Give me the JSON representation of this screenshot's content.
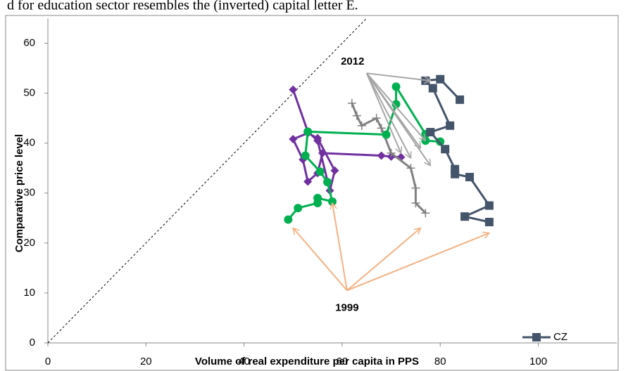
{
  "caption": "d for education sector resembles the (inverted) capital letter E.",
  "chart_data": {
    "type": "line",
    "x_label": "Volume of real expenditure per capita in PPS",
    "y_label": "Comparative price level",
    "xlim": [
      0,
      116
    ],
    "xticks": [
      0,
      20,
      40,
      60,
      80,
      100
    ],
    "ylim": [
      0,
      65
    ],
    "yticks": [
      0,
      10,
      20,
      30,
      40,
      50,
      60
    ],
    "legend": "bottom-right",
    "diagonal": true,
    "series": [
      {
        "color": "#7030a0",
        "marker": "diamond",
        "x": [
          50,
          53,
          55,
          57.5,
          58.5,
          55,
          53,
          50,
          52,
          53,
          55,
          56,
          68,
          70,
          72
        ],
        "values": [
          50.7,
          42.3,
          40.5,
          30.5,
          34.5,
          41,
          42,
          40.8,
          36.7,
          32.3,
          34,
          38,
          37.5,
          37.3,
          37.2
        ]
      },
      {
        "color": "#808080",
        "marker": "plus",
        "x": [
          62,
          63,
          64,
          67,
          68,
          70,
          74,
          75,
          75,
          77
        ],
        "values": [
          48,
          45.5,
          43.5,
          45,
          43,
          38,
          35,
          31,
          28,
          26
        ]
      },
      {
        "color": "#00b050",
        "marker": "circle",
        "x": [
          49,
          51,
          55,
          55,
          58,
          57,
          55.5,
          52.5,
          53,
          69,
          71,
          71,
          77,
          77,
          80
        ],
        "values": [
          24.7,
          27,
          28,
          29,
          28.3,
          32.2,
          34.3,
          37.5,
          42.3,
          41.7,
          47.8,
          51.3,
          41.8,
          40.5,
          40.3
        ]
      },
      {
        "name": "CZ",
        "color": "#44546a",
        "marker": "square",
        "x": [
          90,
          85,
          90,
          86,
          83,
          83,
          81,
          78,
          82,
          78.5,
          77,
          80,
          84
        ],
        "values": [
          24.2,
          25.3,
          27.5,
          33.2,
          33.8,
          34.8,
          38.8,
          42.2,
          43.5,
          51,
          52.5,
          52.8,
          48.7
        ]
      }
    ],
    "annotations": [
      {
        "text": "2012",
        "color": "#a6a6a6",
        "xy": [
          65,
          54
        ],
        "targets": [
          [
            78,
            52.5
          ],
          [
            77,
            40.5
          ],
          [
            76,
            39
          ],
          [
            78,
            35.5
          ],
          [
            72,
            38
          ],
          [
            74,
            37
          ]
        ]
      },
      {
        "text": "1999",
        "color": "#f4b183",
        "xy": [
          61,
          10.5
        ],
        "targets": [
          [
            50,
            23
          ],
          [
            58,
            28
          ],
          [
            76,
            23
          ],
          [
            90,
            22
          ]
        ]
      }
    ]
  }
}
